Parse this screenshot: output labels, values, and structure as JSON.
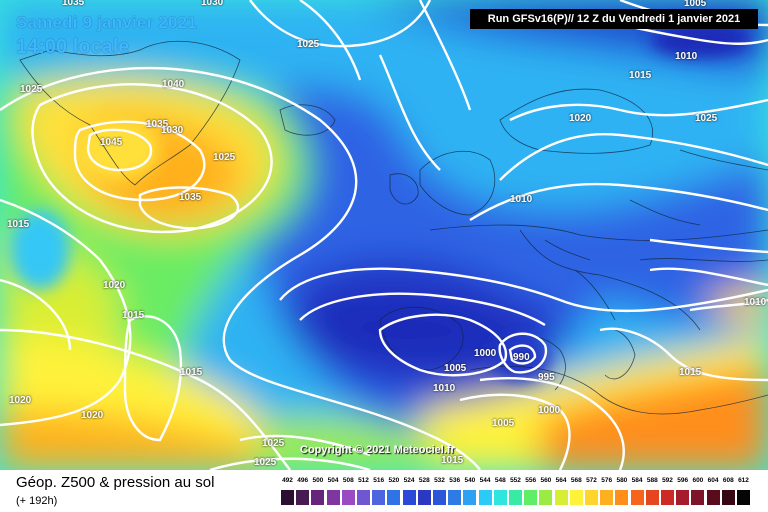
{
  "map": {
    "title_date": "Samedi 9 janvier 2021",
    "title_time": "14:00 locale",
    "run_info": "Run GFSv16(P)// 12 Z du Vendredi 1 janvier 2021",
    "copyright": "Copyright © 2021 Meteociel.fr",
    "legend_title": "Géop. Z500 & pression au sol",
    "legend_subtitle": "(+ 192h)",
    "isobar_labels": [
      "1035",
      "1030",
      "1025",
      "1025",
      "1040",
      "1035",
      "1030",
      "1045",
      "1025",
      "1035",
      "1015",
      "1020",
      "1015",
      "1015",
      "1020",
      "1020",
      "1000",
      "990",
      "995",
      "1005",
      "1010",
      "1005",
      "1000",
      "1015",
      "1025",
      "1025",
      "1015",
      "1010",
      "1025",
      "1010",
      "1020",
      "1005",
      "1010",
      "1015"
    ]
  },
  "color_scale": {
    "labels": [
      "492",
      "496",
      "500",
      "504",
      "508",
      "512",
      "516",
      "520",
      "524",
      "528",
      "532",
      "536",
      "540",
      "544",
      "548",
      "552",
      "556",
      "560",
      "564",
      "568",
      "572",
      "576",
      "580",
      "584",
      "588",
      "592",
      "596",
      "600",
      "604",
      "608",
      "612"
    ],
    "colors": [
      "#2a0f32",
      "#471a52",
      "#65257a",
      "#7f36a0",
      "#9a4bc2",
      "#7056d0",
      "#4e65e0",
      "#2f73e6",
      "#2a49d6",
      "#2a38c2",
      "#2d55d7",
      "#2f7be6",
      "#2ea2f2",
      "#2ccaf6",
      "#2ee6dc",
      "#39e9a6",
      "#61ee67",
      "#9ceb45",
      "#d8ee35",
      "#fff23a",
      "#ffd42c",
      "#ffb01f",
      "#ff8e1b",
      "#f6651b",
      "#e74520",
      "#cc2b25",
      "#a51d2c",
      "#7e1329",
      "#5a0c1e",
      "#350813",
      "#050505"
    ]
  },
  "colors": {
    "isobar": "#ffffff",
    "title": "#3fb6ff",
    "panel_background": "#ffffff",
    "run_box": "#000000"
  }
}
